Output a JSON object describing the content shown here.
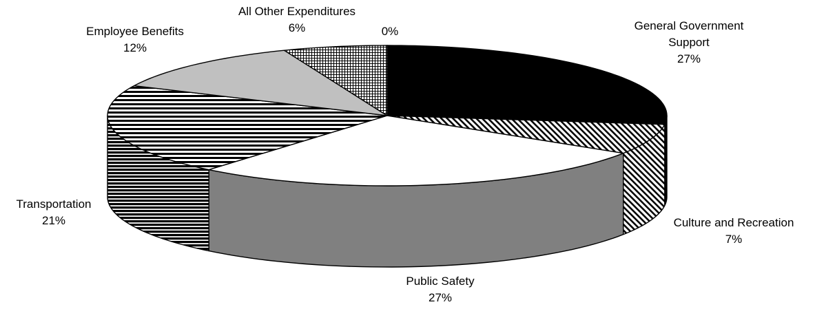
{
  "chart_data": {
    "type": "pie",
    "title": "",
    "three_d": true,
    "style": "black-and-white patterned slices, outlined in black",
    "slices": [
      {
        "label": "General Government Support",
        "value": 27,
        "percent_label": "27%",
        "pattern": "solid-black",
        "label_lines": [
          "General Government",
          "Support",
          "27%"
        ]
      },
      {
        "label": "Culture and Recreation",
        "value": 7,
        "percent_label": "7%",
        "pattern": "diagonal-hatch",
        "label_lines": [
          "Culture and Recreation",
          "7%"
        ]
      },
      {
        "label": "Public Safety",
        "value": 27,
        "percent_label": "27%",
        "pattern": "white-top-gray-side",
        "label_lines": [
          "Public Safety",
          "27%"
        ]
      },
      {
        "label": "Transportation",
        "value": 21,
        "percent_label": "21%",
        "pattern": "horizontal-stripes",
        "label_lines": [
          "Transportation",
          "21%"
        ]
      },
      {
        "label": "Employee Benefits",
        "value": 12,
        "percent_label": "12%",
        "pattern": "light-gray",
        "label_lines": [
          "Employee Benefits",
          "12%"
        ]
      },
      {
        "label": "All Other Expenditures",
        "value": 6,
        "percent_label": "6%",
        "pattern": "checkerboard",
        "label_lines": [
          "All Other Expenditures",
          "6%"
        ]
      },
      {
        "label": "",
        "value": 0,
        "percent_label": "0%",
        "pattern": "none",
        "label_lines": [
          "0%"
        ]
      }
    ]
  }
}
